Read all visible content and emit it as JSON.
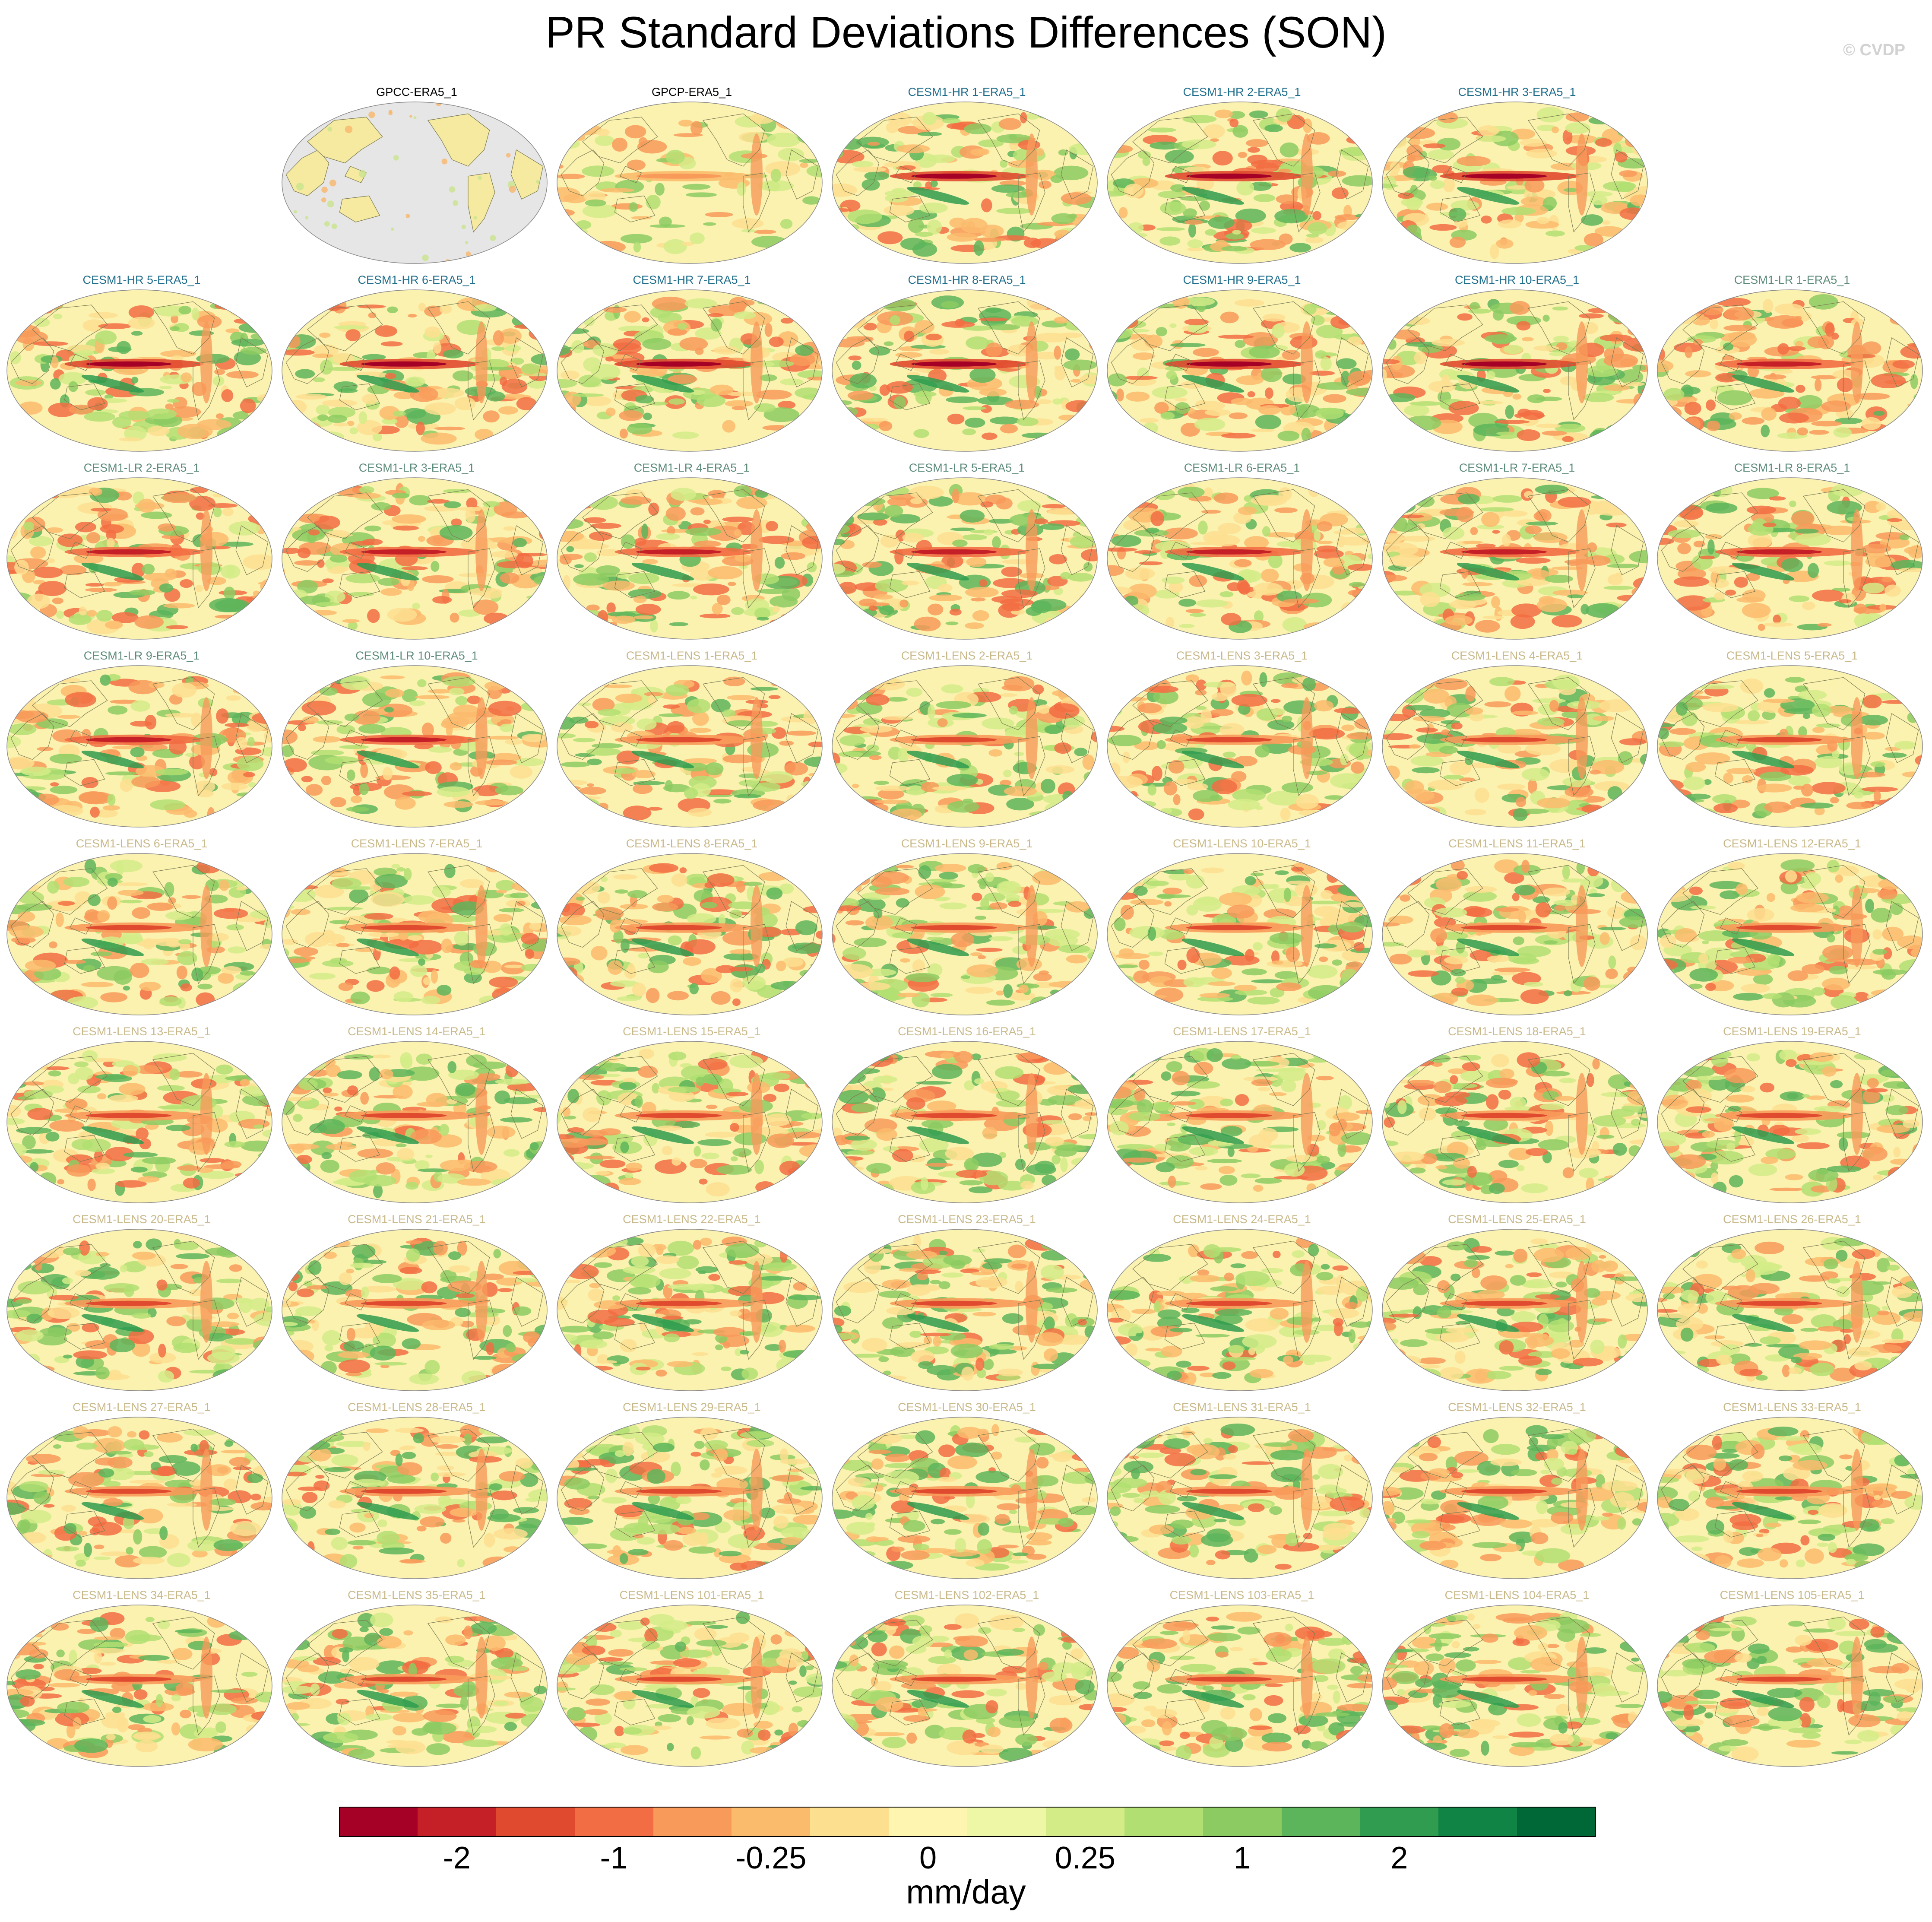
{
  "title": "PR Standard Deviations Differences (SON)",
  "copyright": "© CVDP",
  "colorbar": {
    "units": "mm/day",
    "ticks": [
      "-2",
      "-1",
      "-0.25",
      "0",
      "0.25",
      "1",
      "2"
    ],
    "colors": [
      "#a50026",
      "#c51f27",
      "#e04a2f",
      "#f26d43",
      "#f89a5a",
      "#fbbb6d",
      "#fddf90",
      "#fef5b0",
      "#edf7a6",
      "#d3ec88",
      "#b1df72",
      "#8ccb62",
      "#5db55b",
      "#2f9c4f",
      "#0f8444",
      "#006837"
    ]
  },
  "chart_data": {
    "type": "map",
    "variable": "PR standard deviation difference",
    "season": "SON",
    "panels": [
      {
        "label": "GPCC-ERA5_1",
        "group": "obs",
        "color": "#000000",
        "style": "mostly-missing"
      },
      {
        "label": "GPCP-ERA5_1",
        "group": "obs",
        "color": "#000000",
        "style": "weak"
      },
      {
        "label": "CESM1-HR 1-ERA5_1",
        "group": "hr",
        "color": "#1f6e8c",
        "style": "strong"
      },
      {
        "label": "CESM1-HR 2-ERA5_1",
        "group": "hr",
        "color": "#1f6e8c",
        "style": "strong"
      },
      {
        "label": "CESM1-HR 3-ERA5_1",
        "group": "hr",
        "color": "#1f6e8c",
        "style": "strong"
      },
      {
        "label": "CESM1-HR 5-ERA5_1",
        "group": "hr",
        "color": "#1f6e8c",
        "style": "strong"
      },
      {
        "label": "CESM1-HR 6-ERA5_1",
        "group": "hr",
        "color": "#1f6e8c",
        "style": "strong"
      },
      {
        "label": "CESM1-HR 7-ERA5_1",
        "group": "hr",
        "color": "#1f6e8c",
        "style": "strong"
      },
      {
        "label": "CESM1-HR 8-ERA5_1",
        "group": "hr",
        "color": "#1f6e8c",
        "style": "strong"
      },
      {
        "label": "CESM1-HR 9-ERA5_1",
        "group": "hr",
        "color": "#1f6e8c",
        "style": "strong"
      },
      {
        "label": "CESM1-HR 10-ERA5_1",
        "group": "hr",
        "color": "#1f6e8c",
        "style": "strong"
      },
      {
        "label": "CESM1-LR 1-ERA5_1",
        "group": "lr",
        "color": "#5e8c7a",
        "style": "red"
      },
      {
        "label": "CESM1-LR 2-ERA5_1",
        "group": "lr",
        "color": "#5e8c7a",
        "style": "red"
      },
      {
        "label": "CESM1-LR 3-ERA5_1",
        "group": "lr",
        "color": "#5e8c7a",
        "style": "red"
      },
      {
        "label": "CESM1-LR 4-ERA5_1",
        "group": "lr",
        "color": "#5e8c7a",
        "style": "red"
      },
      {
        "label": "CESM1-LR 5-ERA5_1",
        "group": "lr",
        "color": "#5e8c7a",
        "style": "red"
      },
      {
        "label": "CESM1-LR 6-ERA5_1",
        "group": "lr",
        "color": "#5e8c7a",
        "style": "red"
      },
      {
        "label": "CESM1-LR 7-ERA5_1",
        "group": "lr",
        "color": "#5e8c7a",
        "style": "red"
      },
      {
        "label": "CESM1-LR 8-ERA5_1",
        "group": "lr",
        "color": "#5e8c7a",
        "style": "red"
      },
      {
        "label": "CESM1-LR 9-ERA5_1",
        "group": "lr",
        "color": "#5e8c7a",
        "style": "red"
      },
      {
        "label": "CESM1-LR 10-ERA5_1",
        "group": "lr",
        "color": "#5e8c7a",
        "style": "red"
      },
      {
        "label": "CESM1-LENS 1-ERA5_1",
        "group": "lens",
        "color": "#c9b98a",
        "style": "mixed"
      },
      {
        "label": "CESM1-LENS 2-ERA5_1",
        "group": "lens",
        "color": "#c9b98a",
        "style": "mixed"
      },
      {
        "label": "CESM1-LENS 3-ERA5_1",
        "group": "lens",
        "color": "#c9b98a",
        "style": "mixed"
      },
      {
        "label": "CESM1-LENS 4-ERA5_1",
        "group": "lens",
        "color": "#c9b98a",
        "style": "mixed"
      },
      {
        "label": "CESM1-LENS 5-ERA5_1",
        "group": "lens",
        "color": "#c9b98a",
        "style": "mixed"
      },
      {
        "label": "CESM1-LENS 6-ERA5_1",
        "group": "lens",
        "color": "#c9b98a",
        "style": "mixed"
      },
      {
        "label": "CESM1-LENS 7-ERA5_1",
        "group": "lens",
        "color": "#c9b98a",
        "style": "mixed"
      },
      {
        "label": "CESM1-LENS 8-ERA5_1",
        "group": "lens",
        "color": "#c9b98a",
        "style": "mixed"
      },
      {
        "label": "CESM1-LENS 9-ERA5_1",
        "group": "lens",
        "color": "#c9b98a",
        "style": "mixed"
      },
      {
        "label": "CESM1-LENS 10-ERA5_1",
        "group": "lens",
        "color": "#c9b98a",
        "style": "mixed"
      },
      {
        "label": "CESM1-LENS 11-ERA5_1",
        "group": "lens",
        "color": "#c9b98a",
        "style": "mixed"
      },
      {
        "label": "CESM1-LENS 12-ERA5_1",
        "group": "lens",
        "color": "#c9b98a",
        "style": "mixed"
      },
      {
        "label": "CESM1-LENS 13-ERA5_1",
        "group": "lens",
        "color": "#c9b98a",
        "style": "mixed"
      },
      {
        "label": "CESM1-LENS 14-ERA5_1",
        "group": "lens",
        "color": "#c9b98a",
        "style": "mixed"
      },
      {
        "label": "CESM1-LENS 15-ERA5_1",
        "group": "lens",
        "color": "#c9b98a",
        "style": "mixed"
      },
      {
        "label": "CESM1-LENS 16-ERA5_1",
        "group": "lens",
        "color": "#c9b98a",
        "style": "mixed"
      },
      {
        "label": "CESM1-LENS 17-ERA5_1",
        "group": "lens",
        "color": "#c9b98a",
        "style": "mixed"
      },
      {
        "label": "CESM1-LENS 18-ERA5_1",
        "group": "lens",
        "color": "#c9b98a",
        "style": "mixed"
      },
      {
        "label": "CESM1-LENS 19-ERA5_1",
        "group": "lens",
        "color": "#c9b98a",
        "style": "mixed"
      },
      {
        "label": "CESM1-LENS 20-ERA5_1",
        "group": "lens",
        "color": "#c9b98a",
        "style": "mixed"
      },
      {
        "label": "CESM1-LENS 21-ERA5_1",
        "group": "lens",
        "color": "#c9b98a",
        "style": "mixed"
      },
      {
        "label": "CESM1-LENS 22-ERA5_1",
        "group": "lens",
        "color": "#c9b98a",
        "style": "mixed"
      },
      {
        "label": "CESM1-LENS 23-ERA5_1",
        "group": "lens",
        "color": "#c9b98a",
        "style": "mixed"
      },
      {
        "label": "CESM1-LENS 24-ERA5_1",
        "group": "lens",
        "color": "#c9b98a",
        "style": "mixed"
      },
      {
        "label": "CESM1-LENS 25-ERA5_1",
        "group": "lens",
        "color": "#c9b98a",
        "style": "mixed"
      },
      {
        "label": "CESM1-LENS 26-ERA5_1",
        "group": "lens",
        "color": "#c9b98a",
        "style": "mixed"
      },
      {
        "label": "CESM1-LENS 27-ERA5_1",
        "group": "lens",
        "color": "#c9b98a",
        "style": "mixed"
      },
      {
        "label": "CESM1-LENS 28-ERA5_1",
        "group": "lens",
        "color": "#c9b98a",
        "style": "mixed"
      },
      {
        "label": "CESM1-LENS 29-ERA5_1",
        "group": "lens",
        "color": "#c9b98a",
        "style": "mixed"
      },
      {
        "label": "CESM1-LENS 30-ERA5_1",
        "group": "lens",
        "color": "#c9b98a",
        "style": "mixed"
      },
      {
        "label": "CESM1-LENS 31-ERA5_1",
        "group": "lens",
        "color": "#c9b98a",
        "style": "mixed"
      },
      {
        "label": "CESM1-LENS 32-ERA5_1",
        "group": "lens",
        "color": "#c9b98a",
        "style": "mixed"
      },
      {
        "label": "CESM1-LENS 33-ERA5_1",
        "group": "lens",
        "color": "#c9b98a",
        "style": "mixed"
      },
      {
        "label": "CESM1-LENS 34-ERA5_1",
        "group": "lens",
        "color": "#c9b98a",
        "style": "mixed"
      },
      {
        "label": "CESM1-LENS 35-ERA5_1",
        "group": "lens",
        "color": "#c9b98a",
        "style": "mixed"
      },
      {
        "label": "CESM1-LENS 101-ERA5_1",
        "group": "lens",
        "color": "#c9b98a",
        "style": "mixed"
      },
      {
        "label": "CESM1-LENS 102-ERA5_1",
        "group": "lens",
        "color": "#c9b98a",
        "style": "mixed"
      },
      {
        "label": "CESM1-LENS 103-ERA5_1",
        "group": "lens",
        "color": "#c9b98a",
        "style": "mixed"
      },
      {
        "label": "CESM1-LENS 104-ERA5_1",
        "group": "lens",
        "color": "#c9b98a",
        "style": "mixed"
      },
      {
        "label": "CESM1-LENS 105-ERA5_1",
        "group": "lens",
        "color": "#c9b98a",
        "style": "mixed"
      }
    ]
  }
}
